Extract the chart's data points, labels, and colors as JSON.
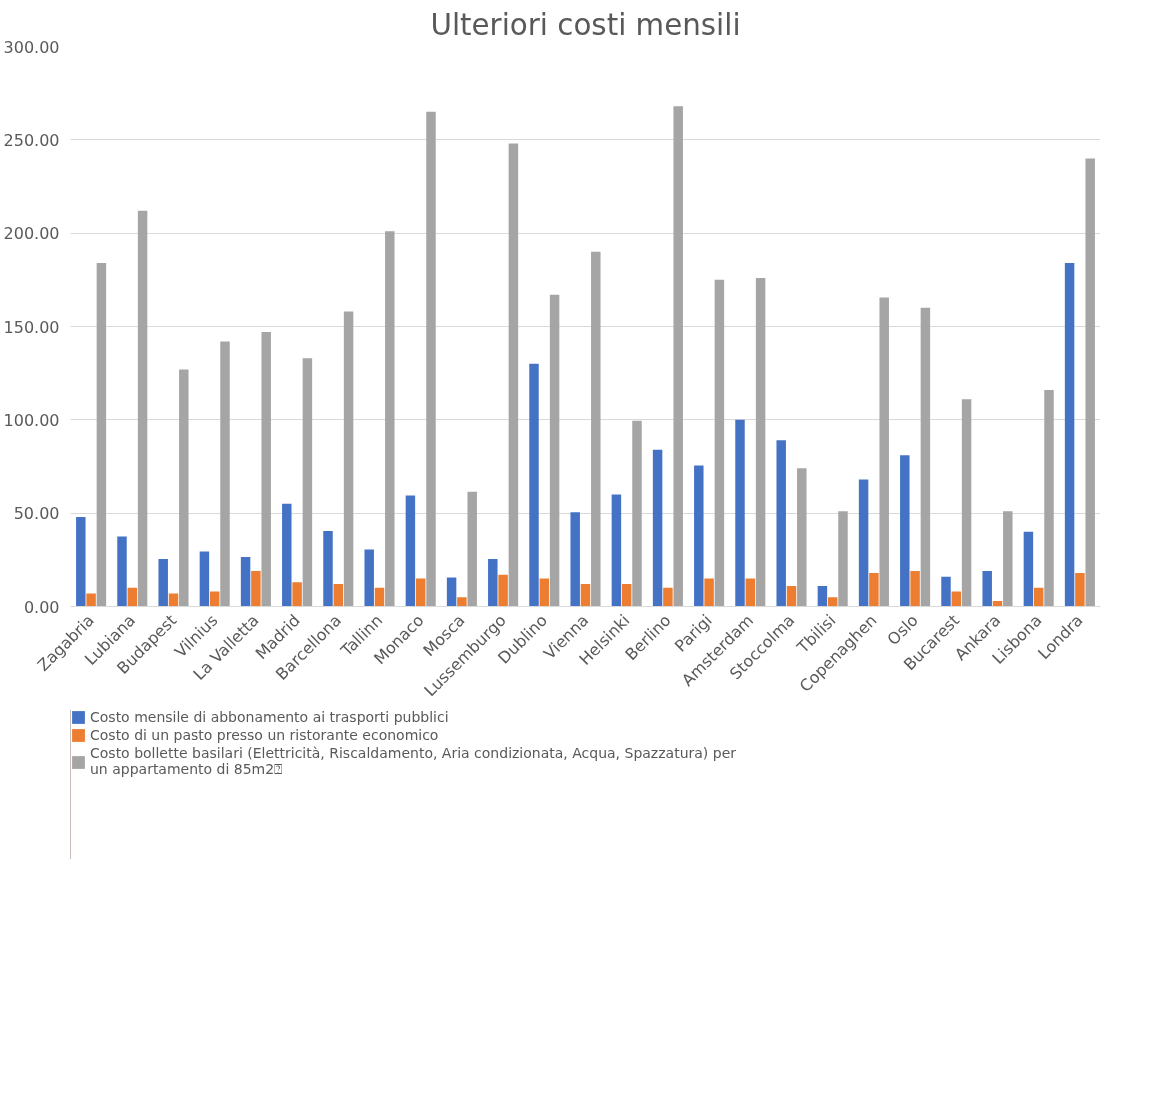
{
  "chart_data": {
    "type": "bar",
    "title": "Ulteriori costi mensili",
    "categories": [
      "Zagabria",
      "Lubiana",
      "Budapest",
      "Vilnius",
      "La Valletta",
      "Madrid",
      "Barcellona",
      "Tallinn",
      "Monaco",
      "Mosca",
      "Lussemburgo",
      "Dublino",
      "Vienna",
      "Helsinki",
      "Berlino",
      "Parigi",
      "Amsterdam",
      "Stoccolma",
      "Tbilisi",
      "Copenaghen",
      "Oslo",
      "Bucarest",
      "Ankara",
      "Lisbona",
      "Londra"
    ],
    "series": [
      {
        "name": "Costo mensile di abbonamento ai trasporti pubblici",
        "color": "#4472c4",
        "values": [
          48,
          37.5,
          25.5,
          29.5,
          26.5,
          55,
          40.5,
          30.5,
          59.5,
          15.5,
          25.5,
          130,
          50.5,
          60,
          84,
          75.5,
          100,
          89,
          11,
          68,
          81,
          16,
          19,
          40,
          184
        ]
      },
      {
        "name": "Costo di un pasto presso un ristorante economico",
        "color": "#ed7d31",
        "values": [
          7,
          10,
          7,
          8,
          19,
          13,
          12,
          10,
          15,
          5,
          17,
          15,
          12,
          12,
          10,
          15,
          15,
          11,
          5,
          18,
          19,
          8,
          3,
          10,
          18
        ]
      },
      {
        "name": "Costo bollette basilari (Elettricità, Riscaldamento, Aria condizionata, Acqua, Spazzatura) per un appartamento di 85m2⍰",
        "color": "#a5a5a5",
        "values": [
          184,
          212,
          127,
          142,
          147,
          133,
          158,
          201,
          265,
          61.5,
          248,
          167,
          190,
          99.5,
          268,
          175,
          176,
          74,
          51,
          165.5,
          160,
          111,
          51,
          116,
          240
        ]
      }
    ],
    "ylim": [
      0,
      300
    ],
    "yticks": [
      {
        "value": 0,
        "label": "0.00"
      },
      {
        "value": 50,
        "label": "50.00"
      },
      {
        "value": 100,
        "label": "100.00"
      },
      {
        "value": 150,
        "label": "150.00"
      },
      {
        "value": 200,
        "label": "200.00"
      },
      {
        "value": 250,
        "label": "250.00"
      },
      {
        "value": 300,
        "label": "300.00"
      }
    ],
    "grid": "y",
    "legend": "bottom"
  }
}
